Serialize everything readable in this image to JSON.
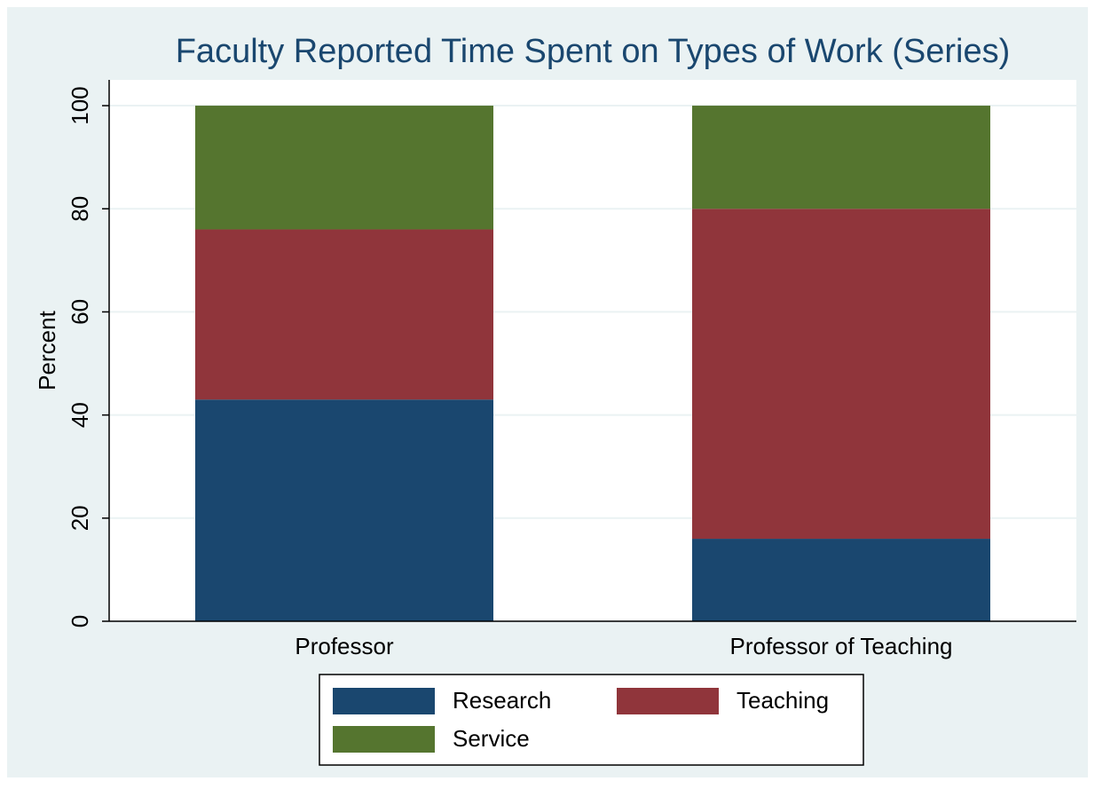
{
  "chart_data": {
    "type": "stacked_bar",
    "title": "Faculty Reported Time Spent on Types of Work (Series)",
    "y_label": "Percent",
    "categories": [
      "Professor",
      "Professor of Teaching"
    ],
    "series": [
      {
        "name": "Research",
        "color": "#1a476f",
        "values": [
          43,
          16
        ]
      },
      {
        "name": "Teaching",
        "color": "#90353b",
        "values": [
          33,
          64
        ]
      },
      {
        "name": "Service",
        "color": "#55752f",
        "values": [
          24,
          20
        ]
      }
    ],
    "ylim": [
      0,
      105
    ],
    "yticks": [
      0,
      20,
      40,
      60,
      80,
      100
    ],
    "grid": true
  }
}
